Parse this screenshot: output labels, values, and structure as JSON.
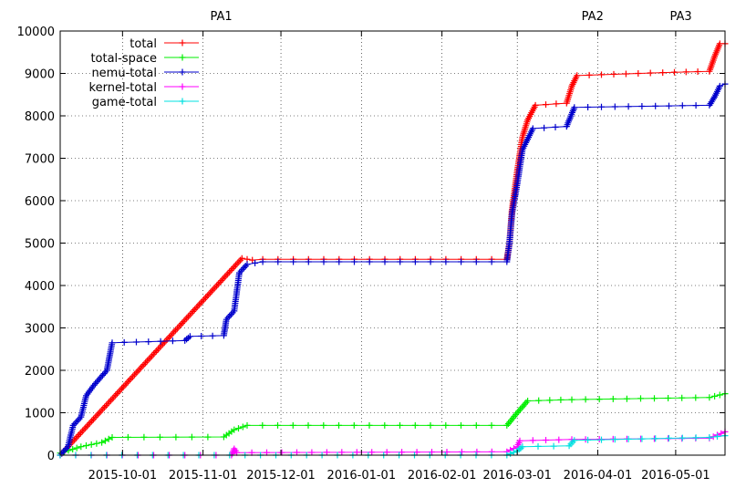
{
  "chart_data": {
    "type": "line",
    "title": "",
    "xlabel": "",
    "ylabel": "",
    "x_axis": "date",
    "xlim": [
      "2015-09-07",
      "2016-05-20"
    ],
    "ylim": [
      0,
      10000
    ],
    "y_ticks": [
      0,
      1000,
      2000,
      3000,
      4000,
      5000,
      6000,
      7000,
      8000,
      9000,
      10000
    ],
    "x_ticks": [
      "2015-10-01",
      "2015-11-01",
      "2015-12-01",
      "2016-01-01",
      "2016-02-01",
      "2016-03-01",
      "2016-04-01",
      "2016-05-01"
    ],
    "grid": true,
    "legend_position": "top-left",
    "annotations": [
      {
        "label": "PA1",
        "x": "2015-11-08"
      },
      {
        "label": "PA2",
        "x": "2016-03-30"
      },
      {
        "label": "PA3",
        "x": "2016-05-03"
      }
    ],
    "series": [
      {
        "name": "total",
        "color": "#ff0000",
        "points": [
          [
            "2015-09-07",
            0
          ],
          [
            "2015-11-16",
            4640
          ],
          [
            "2015-11-20",
            4600
          ],
          [
            "2015-11-24",
            4620
          ],
          [
            "2016-02-26",
            4620
          ],
          [
            "2016-02-27",
            5000
          ],
          [
            "2016-02-28",
            5800
          ],
          [
            "2016-03-01",
            6700
          ],
          [
            "2016-03-03",
            7500
          ],
          [
            "2016-03-05",
            7900
          ],
          [
            "2016-03-08",
            8250
          ],
          [
            "2016-03-20",
            8300
          ],
          [
            "2016-03-22",
            8700
          ],
          [
            "2016-03-24",
            8950
          ],
          [
            "2016-04-26",
            9020
          ],
          [
            "2016-05-14",
            9050
          ],
          [
            "2016-05-16",
            9400
          ],
          [
            "2016-05-18",
            9700
          ],
          [
            "2016-05-20",
            9700
          ]
        ]
      },
      {
        "name": "total-space",
        "color": "#00ee00",
        "points": [
          [
            "2015-09-07",
            50
          ],
          [
            "2015-09-15",
            200
          ],
          [
            "2015-09-23",
            300
          ],
          [
            "2015-09-27",
            420
          ],
          [
            "2015-11-09",
            430
          ],
          [
            "2015-11-13",
            600
          ],
          [
            "2015-11-18",
            700
          ],
          [
            "2016-02-26",
            700
          ],
          [
            "2016-03-01",
            1000
          ],
          [
            "2016-03-05",
            1280
          ],
          [
            "2016-03-22",
            1310
          ],
          [
            "2016-05-14",
            1360
          ],
          [
            "2016-05-20",
            1450
          ]
        ]
      },
      {
        "name": "nemu-total",
        "color": "#0000cc",
        "points": [
          [
            "2015-09-07",
            0
          ],
          [
            "2015-09-10",
            200
          ],
          [
            "2015-09-12",
            700
          ],
          [
            "2015-09-15",
            900
          ],
          [
            "2015-09-17",
            1400
          ],
          [
            "2015-09-20",
            1650
          ],
          [
            "2015-09-25",
            2000
          ],
          [
            "2015-09-27",
            2650
          ],
          [
            "2015-10-25",
            2700
          ],
          [
            "2015-10-27",
            2800
          ],
          [
            "2015-11-09",
            2820
          ],
          [
            "2015-11-10",
            3200
          ],
          [
            "2015-11-13",
            3400
          ],
          [
            "2015-11-15",
            4300
          ],
          [
            "2015-11-18",
            4500
          ],
          [
            "2015-11-24",
            4560
          ],
          [
            "2016-02-26",
            4560
          ],
          [
            "2016-02-27",
            5000
          ],
          [
            "2016-02-28",
            5700
          ],
          [
            "2016-03-01",
            6400
          ],
          [
            "2016-03-03",
            7200
          ],
          [
            "2016-03-07",
            7700
          ],
          [
            "2016-03-20",
            7750
          ],
          [
            "2016-03-23",
            8200
          ],
          [
            "2016-05-14",
            8250
          ],
          [
            "2016-05-16",
            8450
          ],
          [
            "2016-05-18",
            8700
          ],
          [
            "2016-05-20",
            8750
          ]
        ]
      },
      {
        "name": "kernel-total",
        "color": "#ff00ff",
        "points": [
          [
            "2015-09-07",
            0
          ],
          [
            "2015-11-12",
            0
          ],
          [
            "2015-11-13",
            150
          ],
          [
            "2015-11-14",
            60
          ],
          [
            "2016-02-26",
            80
          ],
          [
            "2016-03-01",
            200
          ],
          [
            "2016-03-02",
            340
          ],
          [
            "2016-03-22",
            370
          ],
          [
            "2016-05-14",
            400
          ],
          [
            "2016-05-20",
            550
          ]
        ]
      },
      {
        "name": "game-total",
        "color": "#00e0e0",
        "points": [
          [
            "2015-09-07",
            0
          ],
          [
            "2016-02-26",
            0
          ],
          [
            "2016-03-01",
            100
          ],
          [
            "2016-03-03",
            200
          ],
          [
            "2016-03-21",
            220
          ],
          [
            "2016-03-23",
            350
          ],
          [
            "2016-05-14",
            420
          ],
          [
            "2016-05-20",
            460
          ]
        ]
      }
    ]
  }
}
